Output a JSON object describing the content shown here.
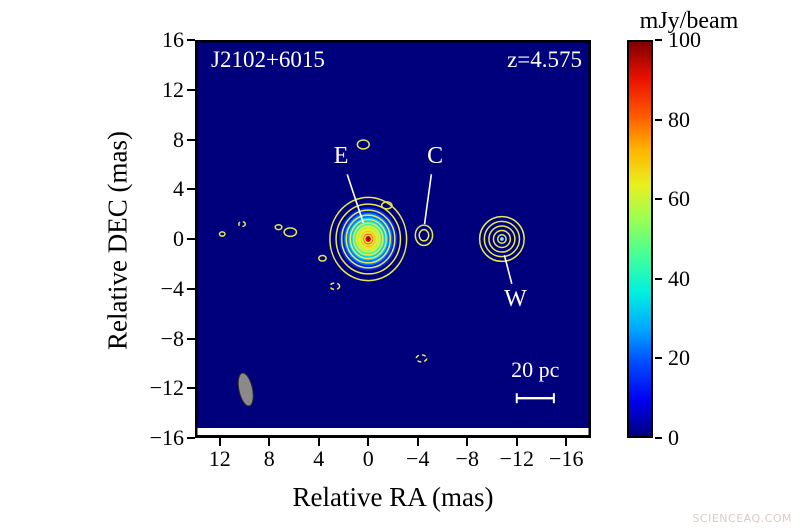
{
  "titles": {
    "source": "J2102+6015",
    "redshift": "z=4.575"
  },
  "axes": {
    "x": {
      "label": "Relative RA (mas)",
      "range": [
        14,
        -18
      ],
      "ticks": [
        {
          "v": 12,
          "label": "12"
        },
        {
          "v": 8,
          "label": "8"
        },
        {
          "v": 4,
          "label": "4"
        },
        {
          "v": 0,
          "label": "0"
        },
        {
          "v": -4,
          "label": "−4"
        },
        {
          "v": -8,
          "label": "−8"
        },
        {
          "v": -12,
          "label": "−12"
        },
        {
          "v": -16,
          "label": "−16"
        }
      ]
    },
    "y": {
      "label": "Relative DEC (mas)",
      "range": [
        16,
        -16
      ],
      "ticks": [
        {
          "v": 16,
          "label": "16"
        },
        {
          "v": 12,
          "label": "12"
        },
        {
          "v": 8,
          "label": "8"
        },
        {
          "v": 4,
          "label": "4"
        },
        {
          "v": 0,
          "label": "0"
        },
        {
          "v": -4,
          "label": "−4"
        },
        {
          "v": -8,
          "label": "−8"
        },
        {
          "v": -12,
          "label": "−12"
        },
        {
          "v": -16,
          "label": "−16"
        }
      ]
    }
  },
  "colorbar": {
    "title": "mJy/beam",
    "range": [
      0,
      100
    ],
    "ticks": [
      {
        "v": 100,
        "label": "100"
      },
      {
        "v": 80,
        "label": "80"
      },
      {
        "v": 60,
        "label": "60"
      },
      {
        "v": 40,
        "label": "40"
      },
      {
        "v": 20,
        "label": "20"
      },
      {
        "v": 0,
        "label": "0"
      }
    ],
    "gradient_stops_bottom_to_top": [
      "#00007f",
      "#0000f0",
      "#0048ff",
      "#00a8ff",
      "#00f0e0",
      "#40ff9c",
      "#96ff56",
      "#e8f020",
      "#ffb400",
      "#ff5400",
      "#e81000",
      "#800000"
    ]
  },
  "colors": {
    "plot_bg": "#00007c",
    "contour": "#e6e84e",
    "frame": "#000000",
    "annotation_text": "#ffffff"
  },
  "watermark": "SCIENCEAQ.COM",
  "annotations": [
    {
      "label": "E",
      "text_ra": 2.2,
      "text_dec": 6.1,
      "line": [
        1.7,
        5.2,
        0.4,
        1.3
      ]
    },
    {
      "label": "C",
      "text_ra": -5.4,
      "text_dec": 6.1,
      "line": [
        -5.1,
        5.2,
        -4.55,
        1.2
      ]
    },
    {
      "label": "W",
      "text_ra": -11.9,
      "text_dec": -5.4,
      "line": [
        -11.6,
        -3.6,
        -11.0,
        -1.3
      ]
    }
  ],
  "scalebar": {
    "label": "20 pc",
    "ra_from": -12.0,
    "ra_to": -15.0,
    "dec": -12.8,
    "label_dec": -11.1
  },
  "beam": {
    "ra": 9.9,
    "dec": -12.1,
    "rx_mas": 0.55,
    "ry_mas": 1.35,
    "angle_deg": -12,
    "fill": "#8a8a8a"
  },
  "components": [
    {
      "name": "E",
      "ra": 0,
      "dec": 0,
      "ry_scale": 1.08,
      "fill_rings": [
        {
          "r": 2.35,
          "color": "#0028e8"
        },
        {
          "r": 1.95,
          "color": "#0077ff"
        },
        {
          "r": 1.6,
          "color": "#00c8ff"
        },
        {
          "r": 1.3,
          "color": "#2df0b2"
        },
        {
          "r": 1.05,
          "color": "#8aff4d"
        },
        {
          "r": 0.82,
          "color": "#e8f000"
        },
        {
          "r": 0.6,
          "color": "#ffb400"
        },
        {
          "r": 0.4,
          "color": "#ff5000"
        },
        {
          "r": 0.22,
          "color": "#d00000"
        },
        {
          "r": 0.1,
          "color": "#800000"
        }
      ],
      "contour_radii": [
        3.1,
        2.6,
        2.15,
        1.78,
        1.45,
        1.18,
        0.93,
        0.7,
        0.48,
        0.28
      ]
    },
    {
      "name": "C",
      "ra": -4.5,
      "dec": 0.3,
      "rx_scale": 0.85,
      "contour_radii": [
        0.82,
        0.45
      ]
    },
    {
      "name": "W",
      "ra": -10.8,
      "dec": 0,
      "contour_radii": [
        1.8,
        1.42,
        1.05,
        0.68,
        0.34
      ],
      "dot": {
        "r": 0.15,
        "color": "#7fe3ff"
      }
    }
  ],
  "noise_contours": [
    {
      "ra": 6.3,
      "dec": 0.55,
      "rx": 0.5,
      "ry": 0.34,
      "neg": false
    },
    {
      "ra": 7.25,
      "dec": 0.95,
      "rx": 0.27,
      "ry": 0.2,
      "neg": false
    },
    {
      "ra": 3.7,
      "dec": -1.55,
      "rx": 0.3,
      "ry": 0.22,
      "neg": false
    },
    {
      "ra": 2.7,
      "dec": -3.8,
      "rx": 0.38,
      "ry": 0.26,
      "neg": true
    },
    {
      "ra": 0.4,
      "dec": 7.6,
      "rx": 0.48,
      "ry": 0.36,
      "neg": false
    },
    {
      "ra": -1.5,
      "dec": 2.7,
      "rx": 0.42,
      "ry": 0.28,
      "neg": false
    },
    {
      "ra": -4.3,
      "dec": -9.6,
      "rx": 0.42,
      "ry": 0.28,
      "neg": true
    },
    {
      "ra": 10.2,
      "dec": 1.2,
      "rx": 0.26,
      "ry": 0.2,
      "neg": true
    },
    {
      "ra": 11.8,
      "dec": 0.4,
      "rx": 0.22,
      "ry": 0.17,
      "neg": false
    }
  ],
  "chart_data": {
    "type": "contour",
    "title": "J2102+6015",
    "annotation_redshift": "z=4.575",
    "xlabel": "Relative RA (mas)",
    "ylabel": "Relative DEC (mas)",
    "x_range_mas": [
      14,
      -18
    ],
    "y_range_mas": [
      16,
      -16
    ],
    "x_ticks": [
      12,
      8,
      4,
      0,
      -4,
      -8,
      -12,
      -16
    ],
    "y_ticks": [
      16,
      12,
      8,
      4,
      0,
      -4,
      -8,
      -12,
      -16
    ],
    "colorbar": {
      "label": "mJy/beam",
      "range": [
        0,
        100
      ],
      "ticks": [
        100,
        80,
        60,
        40,
        20,
        0
      ],
      "colormap": "jet"
    },
    "components": [
      {
        "name": "E",
        "ra_mas": 0,
        "dec_mas": 0,
        "peak_mJy_per_beam_approx": 100,
        "n_contours": 10
      },
      {
        "name": "C",
        "ra_mas": -4.5,
        "dec_mas": 0.3,
        "peak_mJy_per_beam_approx": 6,
        "n_contours": 2
      },
      {
        "name": "W",
        "ra_mas": -10.8,
        "dec_mas": 0,
        "peak_mJy_per_beam_approx": 35,
        "n_contours": 5
      }
    ],
    "scale_bar": {
      "label": "20 pc",
      "length_mas": 3
    },
    "beam_shown_bottom_left": true
  }
}
